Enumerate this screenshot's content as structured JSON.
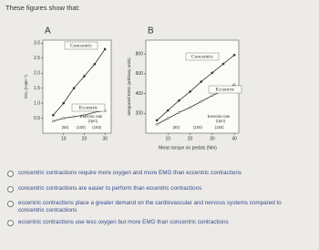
{
  "prompt": "These figures show that:",
  "chart_data": [
    {
      "type": "line",
      "label": "A",
      "ylabel": "V̇O₂ (l·min⁻¹)",
      "xlim": [
        0,
        33
      ],
      "ylim": [
        0,
        3.1
      ],
      "xticks": [
        10,
        20,
        30
      ],
      "yticks": [
        {
          "value": 0.5,
          "label": "0.5"
        },
        {
          "value": 1,
          "label": "1.0"
        },
        {
          "value": 1.5,
          "label": "1.5"
        },
        {
          "value": 2,
          "label": "2.0"
        },
        {
          "value": 2.5,
          "label": "2.5"
        },
        {
          "value": 3,
          "label": "3.0"
        }
      ],
      "rate_title": "Exercise rate",
      "rate_unit": "(rpm)",
      "rate_ticks": [
        "(50)",
        "(100)",
        "(150)"
      ],
      "x": [
        5,
        10,
        15,
        20,
        25,
        30
      ],
      "series": [
        {
          "name": "Concentric",
          "color": "#333333",
          "values": [
            0.6,
            1.0,
            1.5,
            1.9,
            2.3,
            2.8
          ]
        },
        {
          "name": "Eccentric",
          "color": "#333333",
          "values": [
            0.4,
            0.5,
            0.55,
            0.6,
            0.7,
            0.75
          ]
        }
      ]
    },
    {
      "type": "line",
      "label": "B",
      "ylabel": "Integrated EMG (arbitrary units)",
      "xlabel": "Mean torque on pedals (Nm)",
      "xlim": [
        0,
        42
      ],
      "ylim": [
        0,
        940
      ],
      "xticks": [
        10,
        20,
        30,
        40
      ],
      "yticks": [
        200,
        400,
        600,
        800
      ],
      "rate_title": "Exercise rate",
      "rate_unit": "(rpm)",
      "rate_ticks": [
        "(50)",
        "(100)",
        "(150)"
      ],
      "x": [
        5,
        10,
        15,
        20,
        25,
        30,
        35,
        40
      ],
      "series": [
        {
          "name": "Concentric",
          "color": "#333333",
          "values": [
            130,
            230,
            330,
            420,
            520,
            610,
            700,
            790
          ]
        },
        {
          "name": "Eccentric",
          "color": "#333333",
          "values": [
            90,
            150,
            210,
            260,
            320,
            380,
            430,
            490
          ]
        }
      ]
    }
  ],
  "options": [
    "concentric contractions require more oxygen and more EMG than eccentric contractions",
    "concentric contractions are easier to perform than eccentric contractions",
    "eccentric contractions place a greater demand on the cardiovascular and nervous systems compared to concentric contractions",
    "eccentric contractions use less oxygen but more EMG than concentric contractions"
  ]
}
